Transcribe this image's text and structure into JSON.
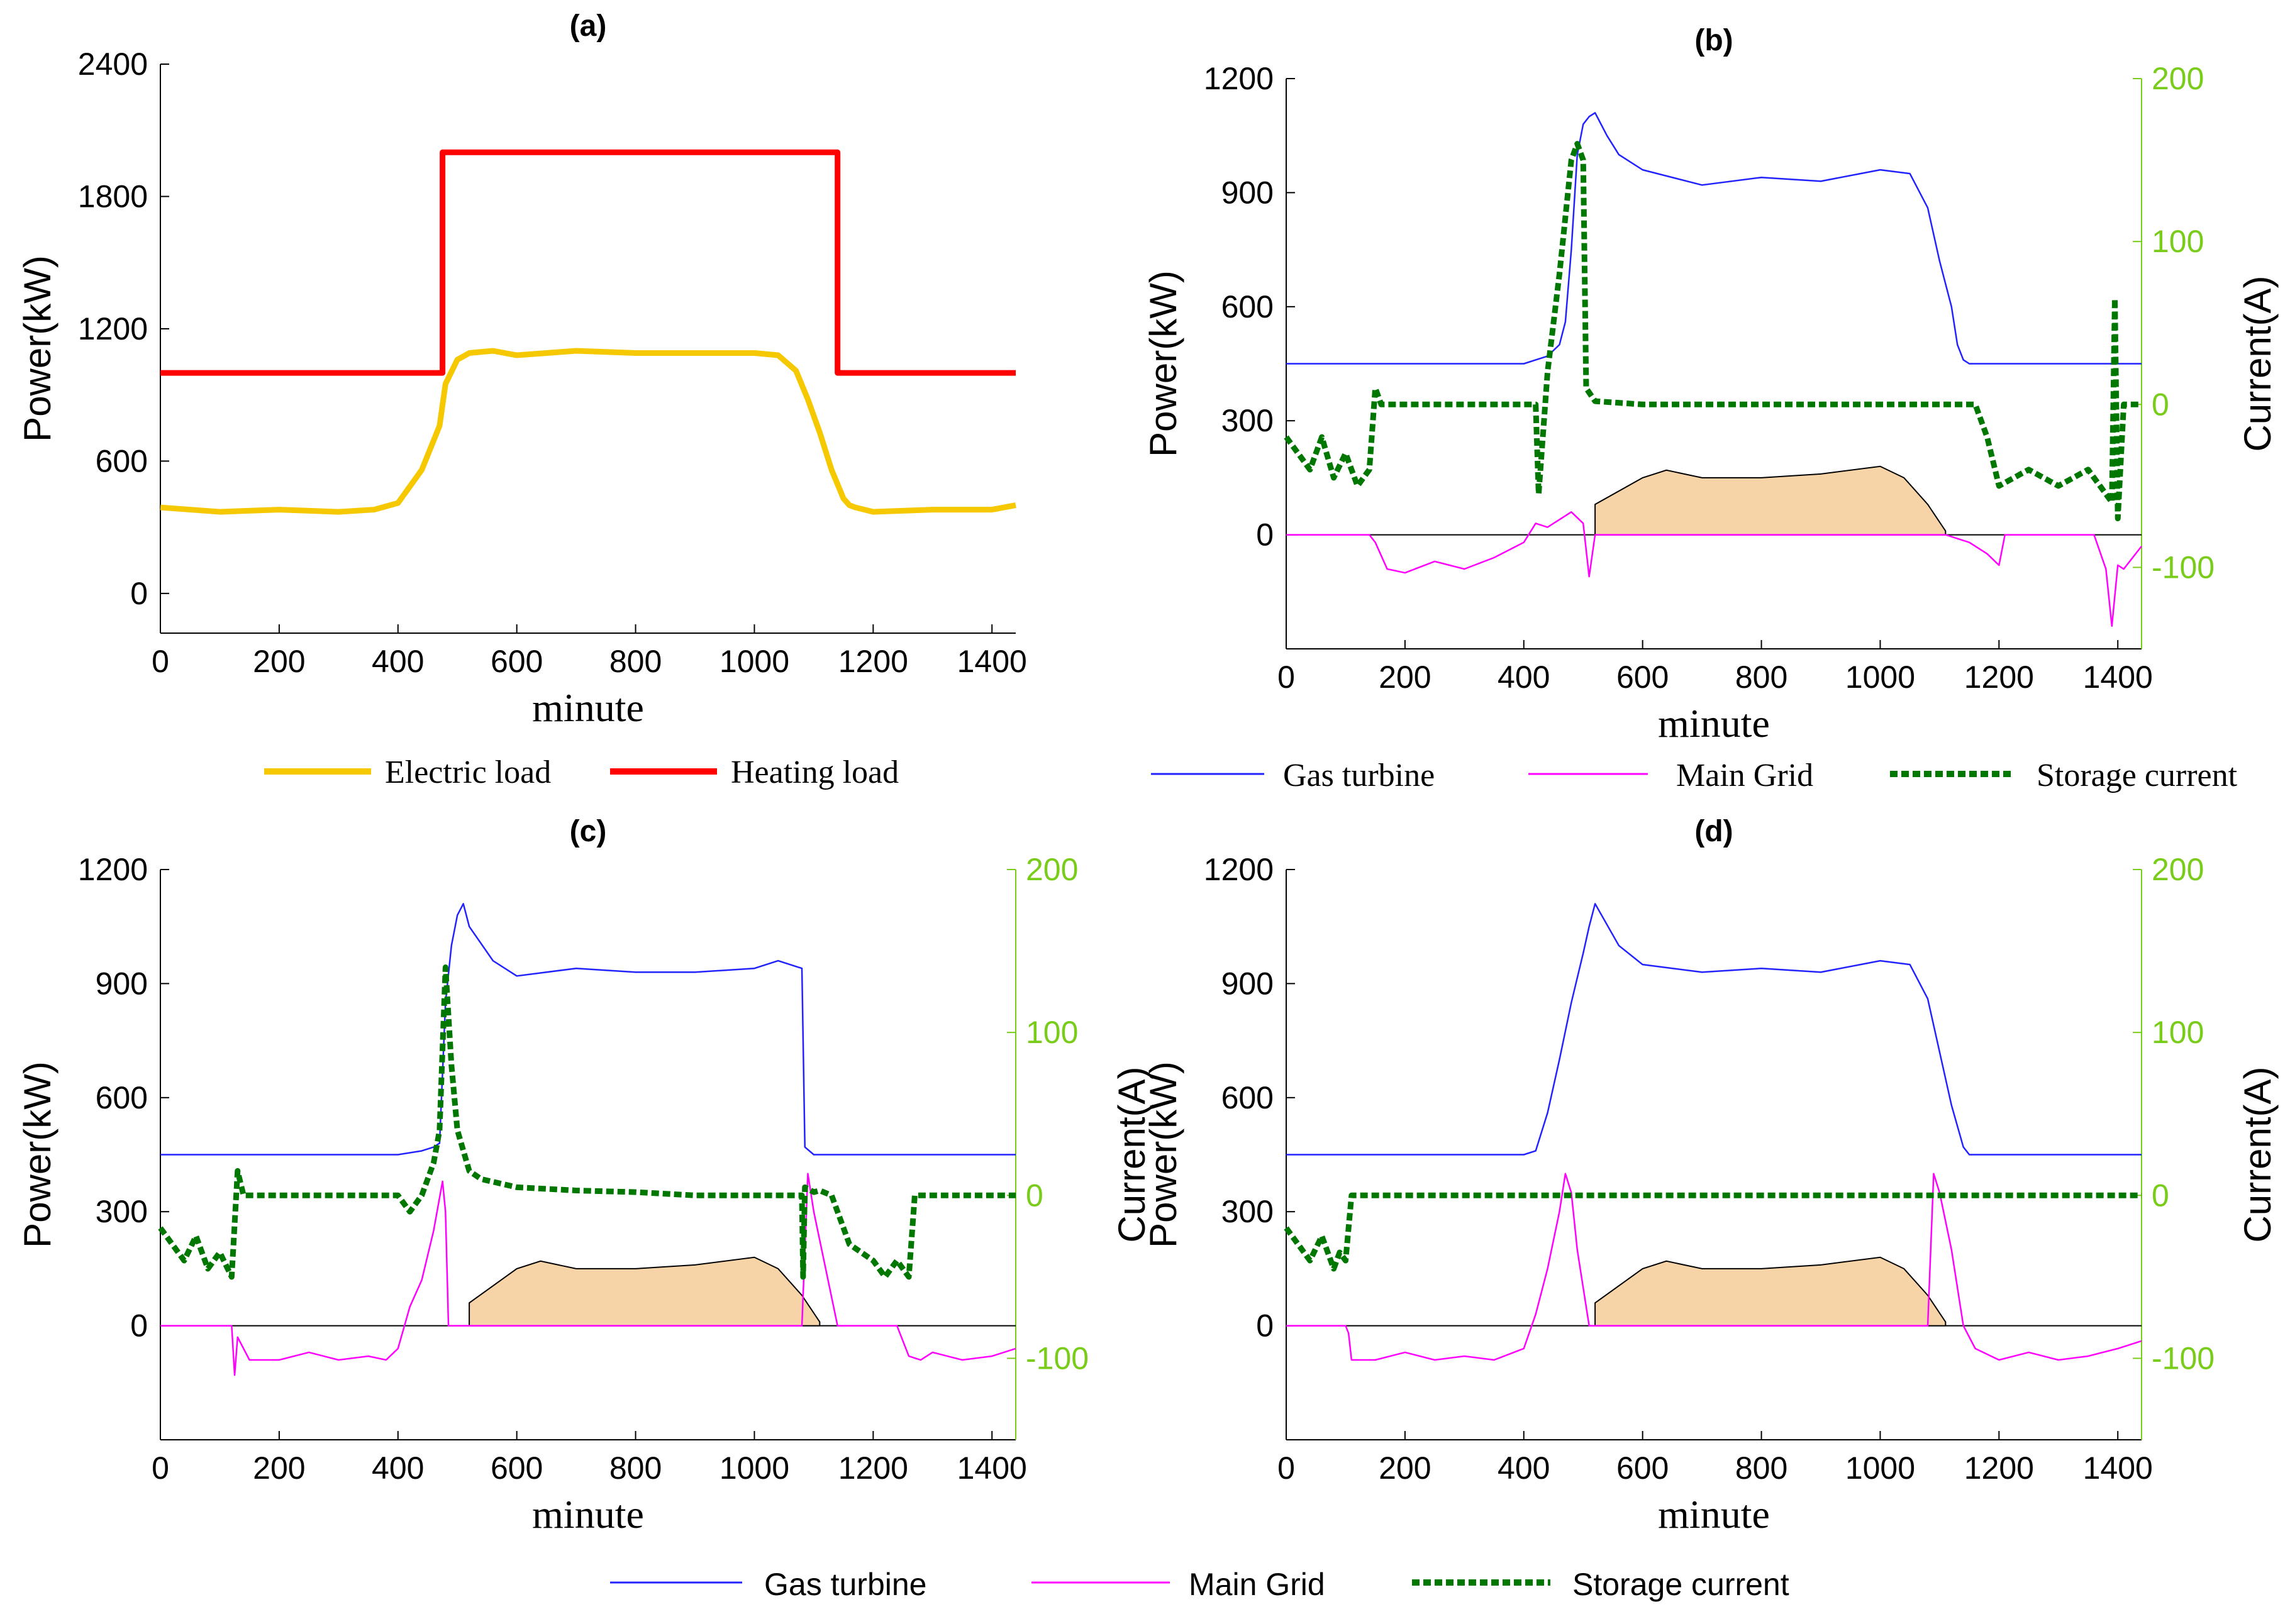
{
  "colors": {
    "electric": "#f5c800",
    "heating": "#ff0000",
    "gas": "#2222ff",
    "grid": "#ff00ff",
    "storage": "#007700",
    "current_axis": "#7acc1a",
    "fill": "#f7d4a8",
    "fill_edge": "#000000"
  },
  "chart_data": [
    {
      "id": "a",
      "type": "line",
      "title": "(a)",
      "xlabel": "minute",
      "ylabel": "Power(kW)",
      "xlim": [
        0,
        1440
      ],
      "ylim": [
        -180,
        2400
      ],
      "x_ticks": [
        0,
        200,
        400,
        600,
        800,
        1000,
        1200,
        1400
      ],
      "y_ticks": [
        0,
        600,
        1200,
        1800,
        2400
      ],
      "legend": "bottom",
      "series": [
        {
          "name": "Electric load",
          "color_key": "electric",
          "x": [
            0,
            100,
            200,
            300,
            360,
            400,
            440,
            470,
            480,
            500,
            520,
            560,
            600,
            700,
            800,
            900,
            1000,
            1040,
            1070,
            1090,
            1110,
            1130,
            1150,
            1160,
            1170,
            1200,
            1300,
            1400,
            1440
          ],
          "y": [
            390,
            370,
            380,
            370,
            380,
            410,
            560,
            760,
            950,
            1060,
            1090,
            1100,
            1080,
            1100,
            1090,
            1090,
            1090,
            1080,
            1010,
            880,
            730,
            560,
            430,
            400,
            390,
            370,
            380,
            380,
            400
          ]
        },
        {
          "name": "Heating load",
          "color_key": "heating",
          "x": [
            0,
            475,
            475,
            1140,
            1140,
            1440
          ],
          "y": [
            1000,
            1000,
            2000,
            2000,
            1000,
            1000
          ]
        }
      ]
    },
    {
      "id": "b",
      "type": "line",
      "title": "(b)",
      "xlabel": "minute",
      "ylabel": "Power(kW)",
      "y2label": "Current(A)",
      "xlim": [
        0,
        1440
      ],
      "ylim": [
        -300,
        1200
      ],
      "y2lim": [
        -150,
        200
      ],
      "x_ticks": [
        0,
        200,
        400,
        600,
        800,
        1000,
        1200,
        1400
      ],
      "y_ticks": [
        0,
        300,
        600,
        900,
        1200
      ],
      "y2_ticks": [
        -100,
        0,
        100,
        200
      ],
      "legend": "bottom",
      "area": {
        "x": [
          520,
          520,
          600,
          640,
          700,
          800,
          900,
          1000,
          1040,
          1080,
          1110,
          1110
        ],
        "y": [
          0,
          80,
          150,
          170,
          150,
          150,
          160,
          180,
          150,
          80,
          10,
          0
        ]
      },
      "series": [
        {
          "name": "Gas turbine",
          "color_key": "gas",
          "axis": "left",
          "x": [
            0,
            100,
            200,
            300,
            400,
            420,
            440,
            460,
            470,
            480,
            490,
            500,
            510,
            520,
            540,
            560,
            600,
            700,
            800,
            900,
            1000,
            1050,
            1080,
            1100,
            1120,
            1130,
            1140,
            1150,
            1200,
            1300,
            1400,
            1440
          ],
          "y": [
            450,
            450,
            450,
            450,
            450,
            460,
            470,
            500,
            560,
            750,
            1000,
            1080,
            1100,
            1110,
            1050,
            1000,
            960,
            920,
            940,
            930,
            960,
            950,
            860,
            720,
            600,
            500,
            460,
            450,
            450,
            450,
            450,
            450
          ]
        },
        {
          "name": "Main Grid",
          "color_key": "grid",
          "axis": "left",
          "x": [
            0,
            60,
            140,
            150,
            170,
            200,
            250,
            300,
            350,
            400,
            420,
            440,
            460,
            480,
            500,
            510,
            520,
            1110,
            1150,
            1180,
            1200,
            1210,
            1360,
            1380,
            1390,
            1400,
            1410,
            1440
          ],
          "y": [
            0,
            0,
            0,
            -20,
            -90,
            -100,
            -70,
            -90,
            -60,
            -20,
            30,
            20,
            40,
            60,
            30,
            -110,
            0,
            0,
            -20,
            -50,
            -80,
            0,
            0,
            -90,
            -240,
            -80,
            -90,
            -30
          ]
        },
        {
          "name": "Storage current",
          "color_key": "storage",
          "axis": "right",
          "x": [
            0,
            20,
            40,
            60,
            80,
            100,
            120,
            140,
            150,
            160,
            400,
            420,
            425,
            440,
            460,
            480,
            490,
            500,
            505,
            520,
            600,
            800,
            1000,
            1100,
            1160,
            1180,
            1200,
            1250,
            1300,
            1350,
            1390,
            1395,
            1400,
            1410,
            1440
          ],
          "y": [
            -20,
            -30,
            -40,
            -20,
            -45,
            -30,
            -50,
            -40,
            10,
            0,
            0,
            0,
            -55,
            20,
            80,
            150,
            160,
            150,
            10,
            2,
            0,
            0,
            0,
            0,
            0,
            -20,
            -50,
            -40,
            -50,
            -40,
            -60,
            65,
            -70,
            0,
            0
          ]
        }
      ]
    },
    {
      "id": "c",
      "type": "line",
      "title": "(c)",
      "xlabel": "minute",
      "ylabel": "Power(kW)",
      "y2label": "Current(A)",
      "xlim": [
        0,
        1440
      ],
      "ylim": [
        -300,
        1200
      ],
      "y2lim": [
        -150,
        200
      ],
      "x_ticks": [
        0,
        200,
        400,
        600,
        800,
        1000,
        1200,
        1400
      ],
      "y_ticks": [
        0,
        300,
        600,
        900,
        1200
      ],
      "y2_ticks": [
        -100,
        0,
        100,
        200
      ],
      "legend": "bottom",
      "area": {
        "x": [
          520,
          520,
          600,
          640,
          700,
          800,
          900,
          1000,
          1040,
          1080,
          1110,
          1110
        ],
        "y": [
          0,
          60,
          150,
          170,
          150,
          150,
          160,
          180,
          150,
          80,
          10,
          0
        ]
      },
      "series": [
        {
          "name": "Gas turbine",
          "color_key": "gas",
          "axis": "left",
          "x": [
            0,
            100,
            200,
            300,
            400,
            440,
            460,
            470,
            480,
            490,
            500,
            510,
            520,
            560,
            600,
            700,
            800,
            900,
            1000,
            1040,
            1080,
            1085,
            1100,
            1440
          ],
          "y": [
            450,
            450,
            450,
            450,
            450,
            460,
            470,
            480,
            850,
            1000,
            1080,
            1110,
            1050,
            960,
            920,
            940,
            930,
            930,
            940,
            960,
            940,
            470,
            450,
            450
          ]
        },
        {
          "name": "Main Grid",
          "color_key": "grid",
          "axis": "left",
          "x": [
            0,
            120,
            125,
            130,
            150,
            200,
            250,
            300,
            350,
            380,
            400,
            420,
            440,
            460,
            475,
            480,
            485,
            490,
            1080,
            1090,
            1100,
            1120,
            1140,
            1145,
            1240,
            1260,
            1280,
            1300,
            1350,
            1400,
            1440
          ],
          "y": [
            0,
            0,
            -130,
            -30,
            -90,
            -90,
            -70,
            -90,
            -80,
            -90,
            -60,
            50,
            120,
            250,
            380,
            300,
            0,
            0,
            0,
            400,
            300,
            150,
            0,
            0,
            0,
            -80,
            -90,
            -70,
            -90,
            -80,
            -60
          ]
        },
        {
          "name": "Storage current",
          "color_key": "storage",
          "axis": "right",
          "x": [
            0,
            20,
            40,
            60,
            80,
            100,
            120,
            130,
            140,
            400,
            420,
            440,
            460,
            470,
            480,
            490,
            500,
            520,
            540,
            600,
            700,
            800,
            900,
            1000,
            1080,
            1082,
            1085,
            1100,
            1110,
            1130,
            1140,
            1160,
            1180,
            1200,
            1220,
            1240,
            1260,
            1270,
            1440
          ],
          "y": [
            -20,
            -30,
            -40,
            -25,
            -45,
            -35,
            -50,
            15,
            0,
            0,
            -10,
            0,
            20,
            40,
            140,
            80,
            40,
            15,
            10,
            5,
            3,
            2,
            0,
            0,
            0,
            -50,
            5,
            2,
            3,
            0,
            -10,
            -30,
            -35,
            -40,
            -50,
            -40,
            -50,
            0,
            0
          ]
        }
      ]
    },
    {
      "id": "d",
      "type": "line",
      "title": "(d)",
      "xlabel": "minute",
      "ylabel": "Power(kW)",
      "y2label": "Current(A)",
      "xlim": [
        0,
        1440
      ],
      "ylim": [
        -300,
        1200
      ],
      "y2lim": [
        -150,
        200
      ],
      "x_ticks": [
        0,
        200,
        400,
        600,
        800,
        1000,
        1200,
        1400
      ],
      "y_ticks": [
        0,
        300,
        600,
        900,
        1200
      ],
      "y2_ticks": [
        -100,
        0,
        100,
        200
      ],
      "legend": "bottom",
      "area": {
        "x": [
          520,
          520,
          600,
          640,
          700,
          800,
          900,
          1000,
          1040,
          1080,
          1110,
          1110
        ],
        "y": [
          0,
          60,
          150,
          170,
          150,
          150,
          160,
          180,
          150,
          80,
          10,
          0
        ]
      },
      "series": [
        {
          "name": "Gas turbine",
          "color_key": "gas",
          "axis": "left",
          "x": [
            0,
            100,
            200,
            300,
            400,
            420,
            440,
            460,
            480,
            500,
            510,
            520,
            560,
            600,
            700,
            800,
            900,
            1000,
            1050,
            1080,
            1100,
            1120,
            1140,
            1150,
            1200,
            1300,
            1440
          ],
          "y": [
            450,
            450,
            450,
            450,
            450,
            460,
            560,
            700,
            850,
            980,
            1050,
            1110,
            1000,
            950,
            930,
            940,
            930,
            960,
            950,
            860,
            720,
            580,
            470,
            450,
            450,
            450,
            450
          ]
        },
        {
          "name": "Main Grid",
          "color_key": "grid",
          "axis": "left",
          "x": [
            0,
            100,
            105,
            110,
            150,
            200,
            250,
            300,
            350,
            400,
            420,
            440,
            460,
            470,
            480,
            490,
            500,
            510,
            520,
            1080,
            1090,
            1100,
            1120,
            1140,
            1160,
            1200,
            1250,
            1300,
            1350,
            1400,
            1440
          ],
          "y": [
            0,
            0,
            -20,
            -90,
            -90,
            -70,
            -90,
            -80,
            -90,
            -60,
            30,
            150,
            300,
            400,
            350,
            200,
            100,
            0,
            0,
            0,
            400,
            350,
            200,
            0,
            -60,
            -90,
            -70,
            -90,
            -80,
            -60,
            -40
          ],
          "label": ""
        },
        {
          "name": "Storage current",
          "color_key": "storage",
          "axis": "right",
          "x": [
            0,
            20,
            40,
            60,
            80,
            90,
            100,
            110,
            1440
          ],
          "y": [
            -20,
            -30,
            -40,
            -25,
            -45,
            -35,
            -40,
            0,
            0
          ]
        }
      ]
    }
  ],
  "legend_a": {
    "electric": "Electric load",
    "heating": "Heating load"
  },
  "legend_b": {
    "gas": "Gas turbine",
    "grid": "Main Grid",
    "storage": "Storage current"
  },
  "legend_cd": {
    "gas": "Gas turbine",
    "grid": "Main Grid",
    "storage": "Storage current"
  }
}
